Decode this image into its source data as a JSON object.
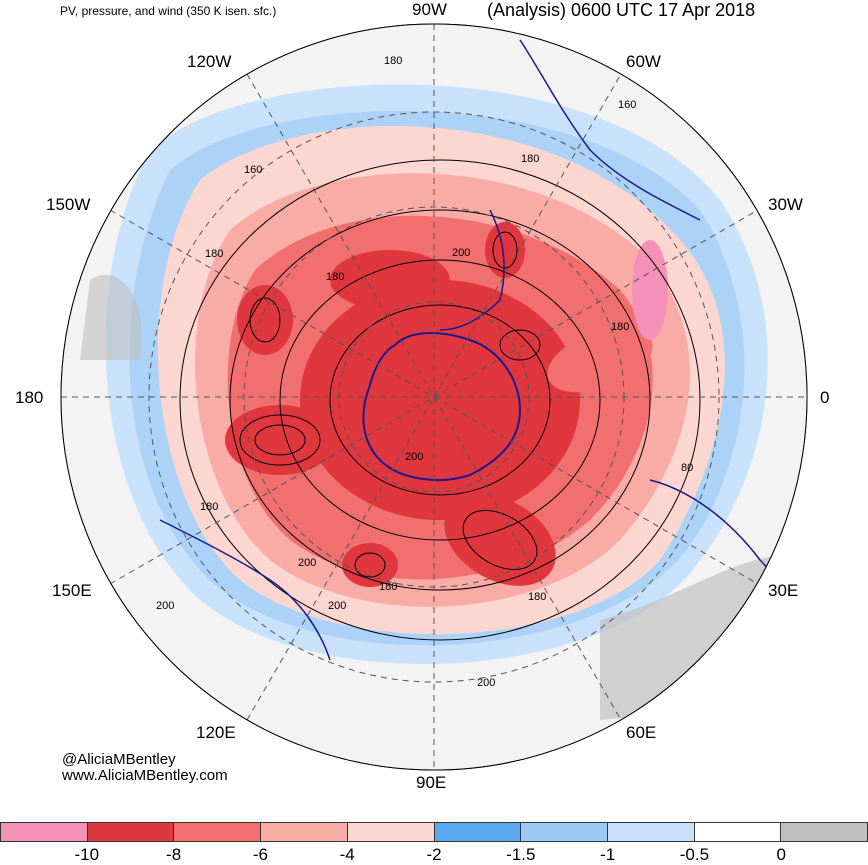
{
  "header": {
    "subtitle": "PV, pressure, and wind (350 K isen. sfc.)",
    "title": "(Analysis) 0600 UTC 17 Apr 2018"
  },
  "map": {
    "projection": "south-polar-stereographic",
    "longitude_labels": {
      "top": "90W",
      "top_right": "60W",
      "right_upper": "30W",
      "right": "0",
      "right_lower": "30E",
      "bottom_right": "60E",
      "bottom": "90E",
      "bottom_left": "120E",
      "left_lower": "150E",
      "left": "180",
      "left_upper": "150W",
      "top_left": "120W"
    },
    "contour_labels": [
      "180",
      "160",
      "180",
      "160",
      "180",
      "200",
      "180",
      "180",
      "200",
      "180",
      "180",
      "200",
      "200",
      "200",
      "180",
      "200",
      "80"
    ],
    "colors": {
      "ocean_land_outline": "#1a1a8c",
      "contour": "#000000",
      "grid": "#555555"
    }
  },
  "credits": {
    "line1": "@AliciaMBentley",
    "line2": "www.AliciaMBentley.com"
  },
  "colorbar": {
    "colors": [
      "#f590b8",
      "#e0373f",
      "#f26f6f",
      "#f9aba6",
      "#fcd6d0",
      "#5aa8f0",
      "#9acaf5",
      "#c9e2fb",
      "#ffffff",
      "#c0c0c0"
    ],
    "ticks": [
      "-10",
      "-8",
      "-6",
      "-4",
      "-2",
      "-1.5",
      "-1",
      "-0.5",
      "0"
    ]
  }
}
